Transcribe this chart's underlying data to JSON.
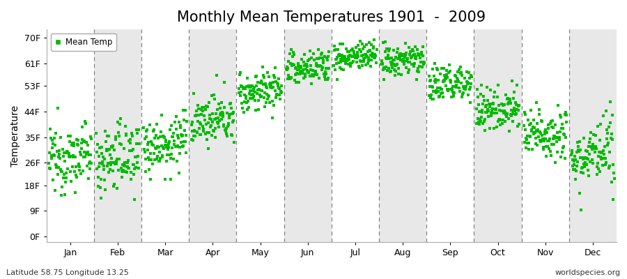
{
  "title": "Monthly Mean Temperatures 1901  -  2009",
  "ylabel": "Temperature",
  "xlabel_bottom_left": "Latitude 58.75 Longitude 13.25",
  "xlabel_bottom_right": "worldspecies.org",
  "legend_label": "Mean Temp",
  "dot_color": "#00BB00",
  "dot_size": 6,
  "background_color": "#FFFFFF",
  "alt_band_color": "#E8E8E8",
  "title_fontsize": 15,
  "axis_fontsize": 10,
  "tick_fontsize": 9,
  "months": [
    "Jan",
    "Feb",
    "Mar",
    "Apr",
    "May",
    "Jun",
    "Jul",
    "Aug",
    "Sep",
    "Oct",
    "Nov",
    "Dec"
  ],
  "yticks": [
    0,
    9,
    18,
    26,
    35,
    44,
    53,
    61,
    70
  ],
  "ytick_labels": [
    "0F",
    "9F",
    "18F",
    "26F",
    "35F",
    "44F",
    "53F",
    "61F",
    "70F"
  ],
  "ylim": [
    -2,
    73
  ],
  "num_years": 109,
  "monthly_means": [
    28.0,
    28.0,
    33.0,
    41.0,
    51.5,
    59.5,
    63.5,
    62.0,
    54.0,
    45.0,
    36.5,
    28.5
  ],
  "monthly_std": [
    5.5,
    6.0,
    5.0,
    4.0,
    3.5,
    3.2,
    2.5,
    2.8,
    3.5,
    3.8,
    4.5,
    5.5
  ],
  "gray_months": [
    1,
    3,
    5,
    7,
    9,
    11
  ]
}
